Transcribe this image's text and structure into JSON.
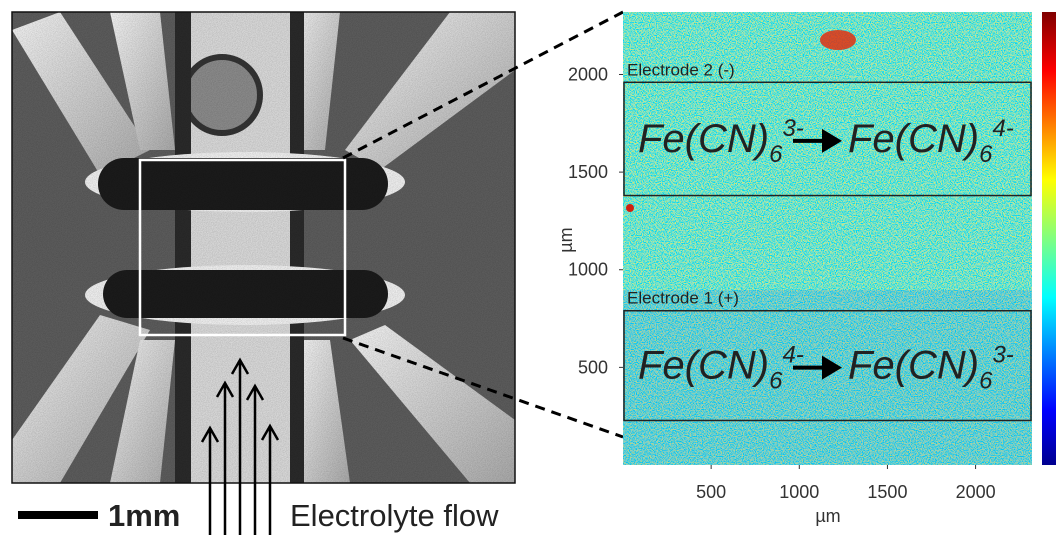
{
  "chart_data": {
    "type": "heatmap",
    "xlabel": "µm",
    "ylabel": "µm",
    "xlim": [
      0,
      2320
    ],
    "ylim": [
      0,
      2320
    ],
    "xticks": [
      500,
      1000,
      1500,
      2000
    ],
    "yticks": [
      500,
      1000,
      1500,
      2000
    ],
    "regions": [
      {
        "label": "Electrode 2 (-)",
        "ylim": [
          1380,
          1960
        ],
        "reactant": {
          "formula": "Fe(CN)",
          "subscript": "6",
          "charge": "3-"
        },
        "product": {
          "formula": "Fe(CN)",
          "subscript": "6",
          "charge": "4-"
        }
      },
      {
        "label": "Electrode 1 (+)",
        "ylim": [
          228,
          790
        ],
        "reactant": {
          "formula": "Fe(CN)",
          "subscript": "6",
          "charge": "4-"
        },
        "product": {
          "formula": "Fe(CN)",
          "subscript": "6",
          "charge": "3-"
        }
      }
    ]
  },
  "photo": {
    "scale_bar": "1mm",
    "flow_label": "Electrolyte flow"
  }
}
